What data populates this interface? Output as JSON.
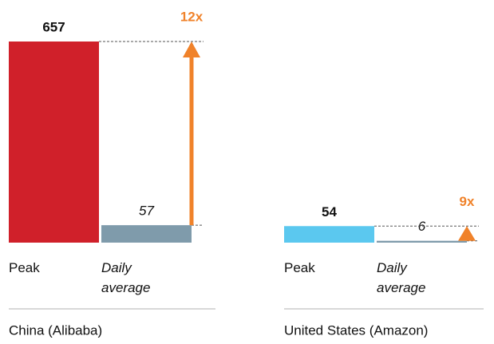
{
  "chart_data": [
    {
      "type": "bar",
      "title": "China (Alibaba)",
      "categories": [
        "Peak",
        "Daily average"
      ],
      "values": [
        657,
        57
      ],
      "colors": [
        "#d0202a",
        "#7f9bab"
      ],
      "annotation": "12x",
      "annotation_color": "#f0822a"
    },
    {
      "type": "bar",
      "title": "United States (Amazon)",
      "categories": [
        "Peak",
        "Daily average"
      ],
      "values": [
        54,
        6
      ],
      "colors": [
        "#5bc8ef",
        "#7f9bab"
      ],
      "annotation": "9x",
      "annotation_color": "#f0822a"
    }
  ]
}
